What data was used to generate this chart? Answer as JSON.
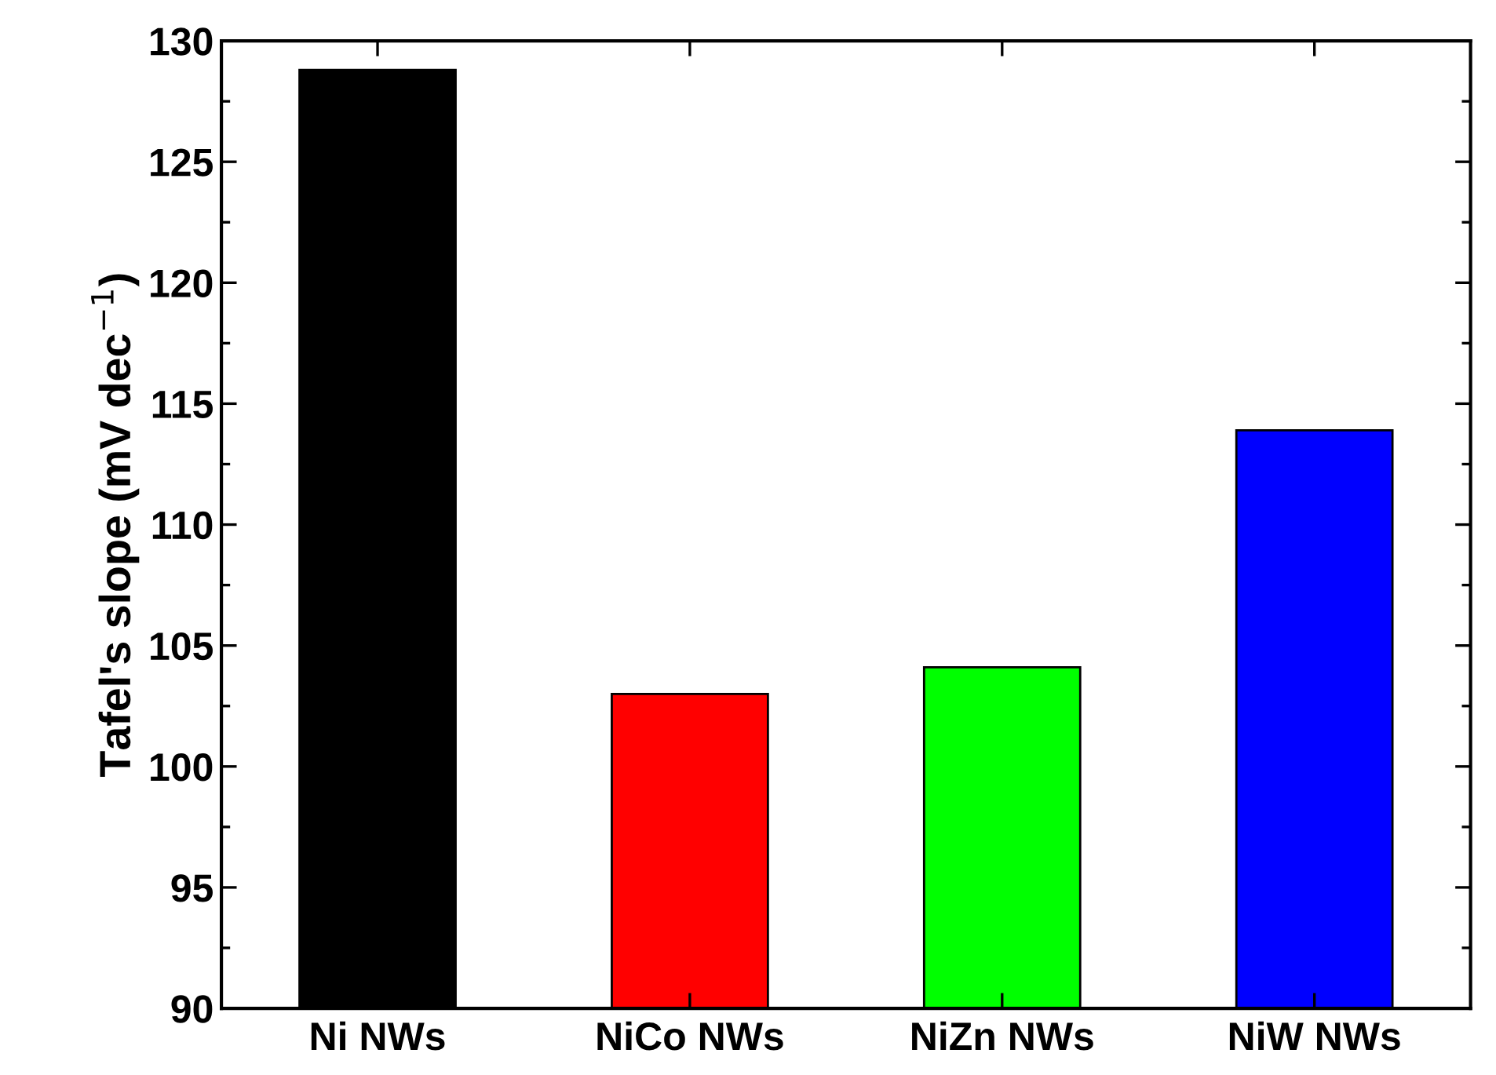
{
  "chart_data": {
    "type": "bar",
    "ylabel": "Tafel's slope (mV dec$^{−1}$)",
    "categories": [
      "Ni NWs",
      "NiCo NWs",
      "NiZn NWs",
      "NiW NWs"
    ],
    "values": [
      128.8,
      103.0,
      104.1,
      113.9
    ],
    "colors": [
      "#000000",
      "#ff0000",
      "#00ff00",
      "#0000ff"
    ],
    "ylim": [
      90,
      130
    ],
    "yticks": [
      90,
      95,
      100,
      105,
      110,
      115,
      120,
      125,
      130
    ],
    "grid": false,
    "legend": false
  }
}
